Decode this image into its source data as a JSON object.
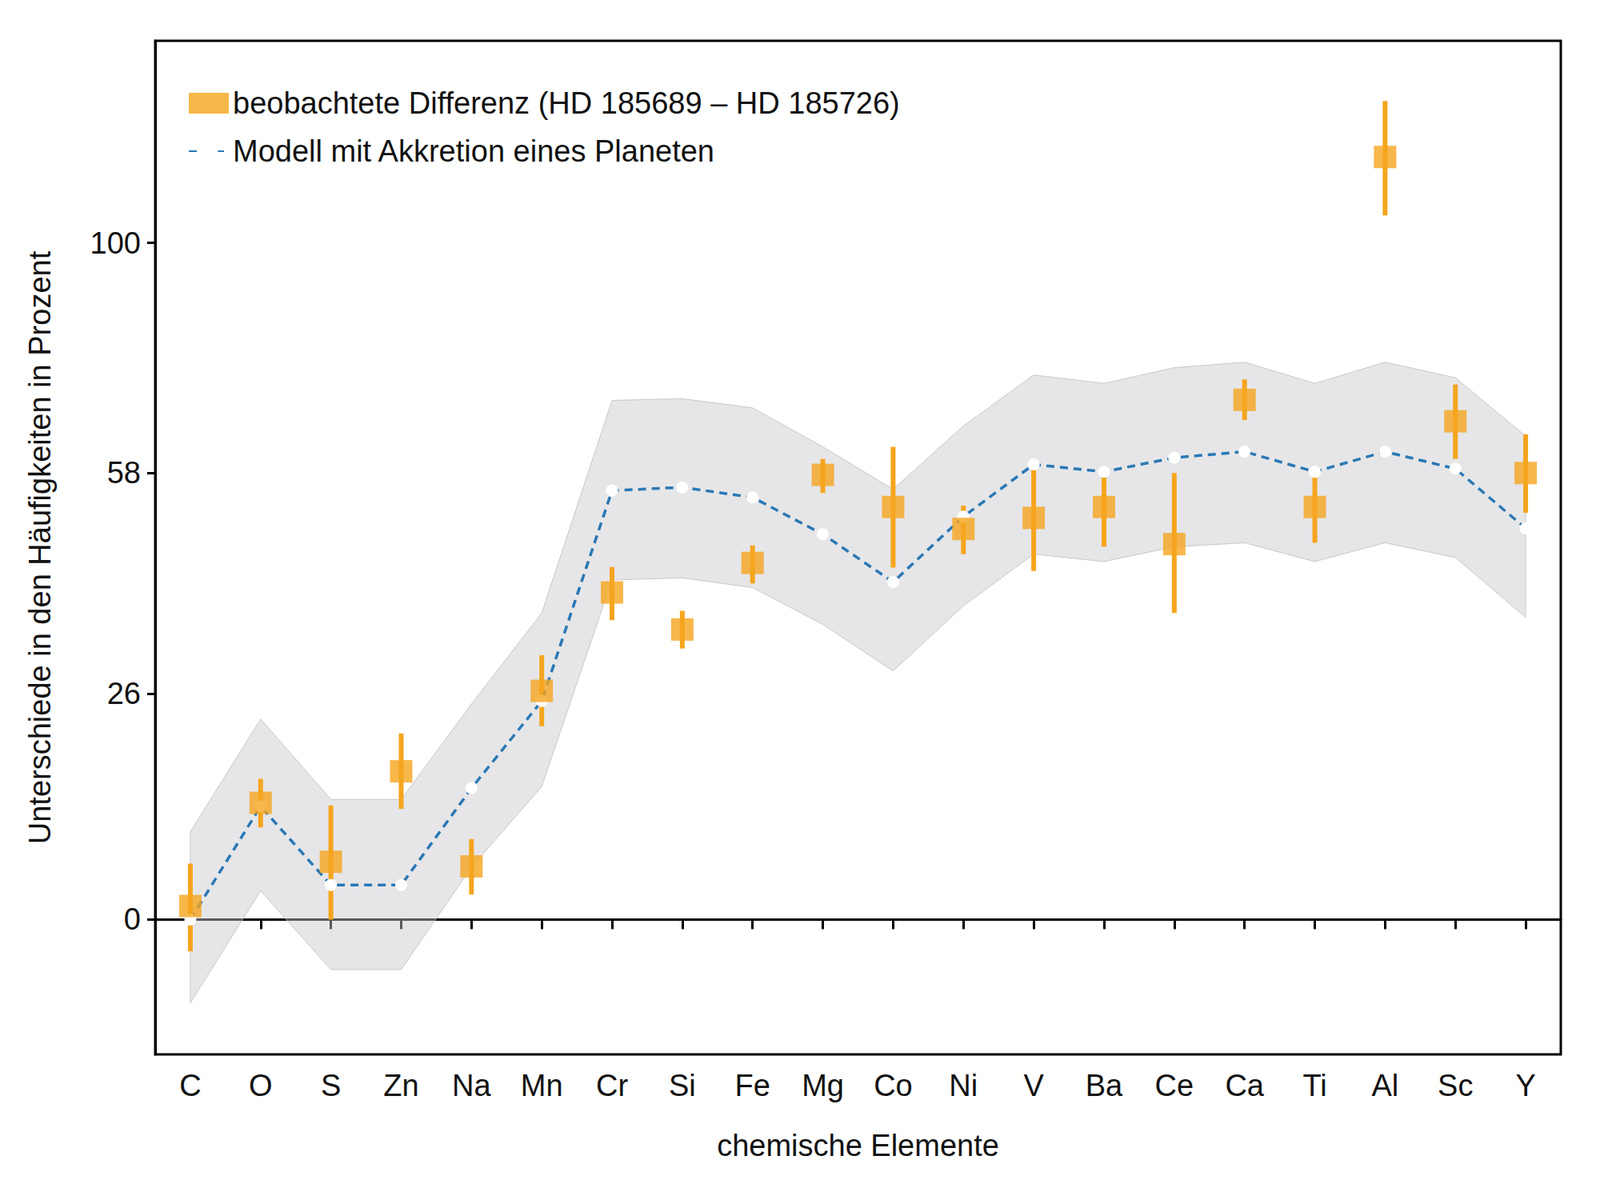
{
  "chart_data": {
    "type": "scatter",
    "x_label": "chemische Elemente",
    "y_label": "Unterschiede in den Häufigkeiten in Prozent",
    "categories": [
      "C",
      "O",
      "S",
      "Zn",
      "Na",
      "Mn",
      "Cr",
      "Si",
      "Fe",
      "Mg",
      "Co",
      "Ni",
      "V",
      "Ba",
      "Ce",
      "Ca",
      "Ti",
      "Al",
      "Sc",
      "Y"
    ],
    "ylim": [
      -12.9,
      146
    ],
    "yticks": [
      0,
      26,
      58,
      100
    ],
    "log": "y",
    "grid": false,
    "legend": "top-left",
    "series": [
      {
        "name": "beobachtete Differenz (HD 185689 – HD 185726)",
        "type": "scatter",
        "marker": "square",
        "color": "#f5a51e",
        "values": [
          1.4,
          12.7,
          6.1,
          16.4,
          5.6,
          26.4,
          39.8,
          34.6,
          44.1,
          57.7,
          52.6,
          49.2,
          50.9,
          52.6,
          46.9,
          70.3,
          52.6,
          118.4,
          66.6,
          58.0
        ],
        "error_low": [
          -3.2,
          9.9,
          0.0,
          12.0,
          2.6,
          21.9,
          35.9,
          32.0,
          41.1,
          54.8,
          43.4,
          45.4,
          42.9,
          46.5,
          36.9,
          66.8,
          47.1,
          105.7,
          60.3,
          51.7
        ],
        "error_high": [
          5.9,
          15.5,
          12.4,
          21.0,
          8.6,
          31.1,
          43.5,
          37.2,
          46.7,
          60.3,
          62.3,
          52.8,
          59.0,
          58.3,
          58.0,
          73.9,
          58.0,
          131.3,
          73.0,
          64.4
        ]
      },
      {
        "name": "Modell mit Akkretion eines Planeten",
        "type": "line",
        "line_style": "dashed",
        "marker": "circle",
        "color": "#2a78b5",
        "values": [
          0,
          12.3,
          3.6,
          3.6,
          14.4,
          25.1,
          55.2,
          55.7,
          54.1,
          48.4,
          41.3,
          51.1,
          59.4,
          58.2,
          60.5,
          61.5,
          58.2,
          61.5,
          58.7,
          49.3
        ],
        "band_lower": [
          -8.2,
          3.0,
          -5.0,
          -5.0,
          5.5,
          14.6,
          41.6,
          41.9,
          40.5,
          35.3,
          29.0,
          37.9,
          45.4,
          44.3,
          46.5,
          47.1,
          44.3,
          47.1,
          44.9,
          36.3
        ],
        "band_upper": [
          9.4,
          22.8,
          13.1,
          13.1,
          24.7,
          36.9,
          70.2,
          70.5,
          68.9,
          62.3,
          55.4,
          65.8,
          74.7,
          73.2,
          76.0,
          77.0,
          73.2,
          77.0,
          74.2,
          64.1
        ]
      }
    ]
  }
}
